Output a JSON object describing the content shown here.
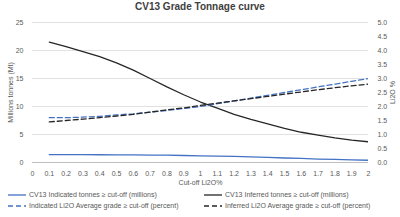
{
  "chart_data": {
    "type": "line",
    "title": "CV13 Grade Tonnage curve",
    "x_label": "Cut-off Li2O%",
    "y_label": "Millions tonnes (Mt)",
    "y2_label": "Li2O %",
    "x": [
      0.1,
      0.2,
      0.3,
      0.4,
      0.5,
      0.6,
      0.7,
      0.8,
      0.9,
      1.0,
      1.1,
      1.2,
      1.3,
      1.4,
      1.5,
      1.6,
      1.7,
      1.8,
      1.9,
      2.0
    ],
    "xlim": [
      0,
      2
    ],
    "xticks": [
      0,
      0.1,
      0.2,
      0.3,
      0.4,
      0.5,
      0.6,
      0.7,
      0.8,
      0.9,
      1,
      1.1,
      1.2,
      1.3,
      1.4,
      1.5,
      1.6,
      1.7,
      1.8,
      1.9,
      2
    ],
    "ylim": [
      0,
      25
    ],
    "yticks": [
      0,
      5,
      10,
      15,
      20,
      25
    ],
    "y2lim": [
      0,
      5
    ],
    "y2ticks": [
      {
        "value": 0,
        "label": "0.0"
      },
      {
        "value": 0.5,
        "label": "0.5"
      },
      {
        "value": 1,
        "label": "1.0"
      },
      {
        "value": 1.5,
        "label": "1.5"
      },
      {
        "value": 2,
        "label": "2.0"
      },
      {
        "value": 2.5,
        "label": "2.5"
      },
      {
        "value": 3,
        "label": "3.0"
      },
      {
        "value": 3.5,
        "label": "3.5"
      },
      {
        "value": 4,
        "label": "4.0"
      },
      {
        "value": 4.5,
        "label": "4.5"
      },
      {
        "value": 5,
        "label": "5.0"
      }
    ],
    "grid": true,
    "legend": "bottom",
    "series": [
      {
        "name": "CV13 Indicated tonnes ≥ cut-off (millions)",
        "color": "#4472c4",
        "line_style": "solid",
        "values": [
          1.4,
          1.4,
          1.4,
          1.38,
          1.37,
          1.35,
          1.33,
          1.3,
          1.25,
          1.2,
          1.15,
          1.1,
          1.0,
          0.9,
          0.8,
          0.72,
          0.62,
          0.55,
          0.47,
          0.4
        ]
      },
      {
        "name": "CV13 Inferred tonnes ≥ cut-off (millions)",
        "color": "#262626",
        "line_style": "solid",
        "values": [
          21.5,
          20.7,
          19.8,
          18.9,
          17.8,
          16.5,
          15.0,
          13.5,
          12.1,
          10.8,
          9.7,
          8.6,
          7.7,
          6.9,
          6.1,
          5.4,
          4.9,
          4.4,
          4.0,
          3.7
        ]
      },
      {
        "name": "Indicated Li2O Average grade ≥ cut-off (percent)",
        "color": "#4472c4",
        "line_style": "dashed",
        "axis": "y2",
        "values": [
          1.6,
          1.6,
          1.62,
          1.65,
          1.7,
          1.74,
          1.8,
          1.86,
          1.93,
          2.0,
          2.1,
          2.2,
          2.3,
          2.4,
          2.5,
          2.6,
          2.7,
          2.8,
          2.9,
          3.0
        ]
      },
      {
        "name": "Inferred Li2O Average grade ≥ cut-off (percent)",
        "color": "#262626",
        "line_style": "dashed",
        "axis": "y2",
        "values": [
          1.45,
          1.5,
          1.55,
          1.6,
          1.66,
          1.72,
          1.8,
          1.88,
          1.95,
          2.04,
          2.12,
          2.2,
          2.28,
          2.36,
          2.44,
          2.52,
          2.6,
          2.67,
          2.74,
          2.8
        ]
      }
    ]
  }
}
